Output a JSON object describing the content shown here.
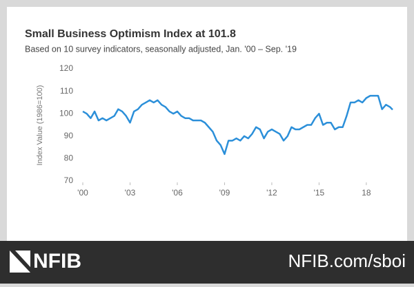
{
  "chart_data": {
    "type": "line",
    "title": "Small Business Optimism Index at 101.8",
    "subtitle": "Based on 10 survey indicators, seasonally adjusted, Jan. '00 – Sep. '19",
    "y_label": "Index Value (1986=100)",
    "x": [
      2000,
      2000.25,
      2000.5,
      2000.75,
      2001,
      2001.25,
      2001.5,
      2001.75,
      2002,
      2002.25,
      2002.5,
      2002.75,
      2003,
      2003.25,
      2003.5,
      2003.75,
      2004,
      2004.25,
      2004.5,
      2004.75,
      2005,
      2005.25,
      2005.5,
      2005.75,
      2006,
      2006.25,
      2006.5,
      2006.75,
      2007,
      2007.25,
      2007.5,
      2007.75,
      2008,
      2008.25,
      2008.5,
      2008.75,
      2009,
      2009.25,
      2009.5,
      2009.75,
      2010,
      2010.25,
      2010.5,
      2010.75,
      2011,
      2011.25,
      2011.5,
      2011.75,
      2012,
      2012.25,
      2012.5,
      2012.75,
      2013,
      2013.25,
      2013.5,
      2013.75,
      2014,
      2014.25,
      2014.5,
      2014.75,
      2015,
      2015.25,
      2015.5,
      2015.75,
      2016,
      2016.25,
      2016.5,
      2016.75,
      2017,
      2017.25,
      2017.5,
      2017.75,
      2018,
      2018.25,
      2018.5,
      2018.75,
      2019,
      2019.25,
      2019.5,
      2019.67
    ],
    "series": [
      {
        "name": "Small Business Optimism Index",
        "color": "#2b8fd9",
        "values": [
          101,
          100,
          98,
          101,
          97,
          98,
          97,
          98,
          99,
          102,
          101,
          99,
          96,
          101,
          102,
          104,
          105,
          106,
          105,
          106,
          104,
          103,
          101,
          100,
          101,
          99,
          98,
          98,
          97,
          97,
          97,
          96,
          94,
          92,
          88,
          86,
          82,
          88,
          88,
          89,
          88,
          90,
          89,
          91,
          94,
          93,
          89,
          92,
          93,
          92,
          91,
          88,
          90,
          94,
          93,
          93,
          94,
          95,
          95,
          98,
          100,
          95,
          96,
          96,
          93,
          94,
          94,
          99,
          105,
          105,
          106,
          105,
          107,
          108,
          108,
          108,
          102,
          104,
          103,
          101.8
        ]
      }
    ],
    "xlim": [
      2000,
      2019.67
    ],
    "xticks": [
      {
        "value": 2000,
        "label": "'00"
      },
      {
        "value": 2003,
        "label": "'03"
      },
      {
        "value": 2006,
        "label": "'06"
      },
      {
        "value": 2009,
        "label": "'09"
      },
      {
        "value": 2012,
        "label": "'12"
      },
      {
        "value": 2015,
        "label": "'15"
      },
      {
        "value": 2018,
        "label": "18"
      }
    ],
    "ylim": [
      70,
      120
    ],
    "yticks": [
      70,
      80,
      90,
      100,
      110,
      120
    ],
    "grid": false
  },
  "footer": {
    "logo": "NFIB",
    "url": "NFIB.com/sboi"
  }
}
